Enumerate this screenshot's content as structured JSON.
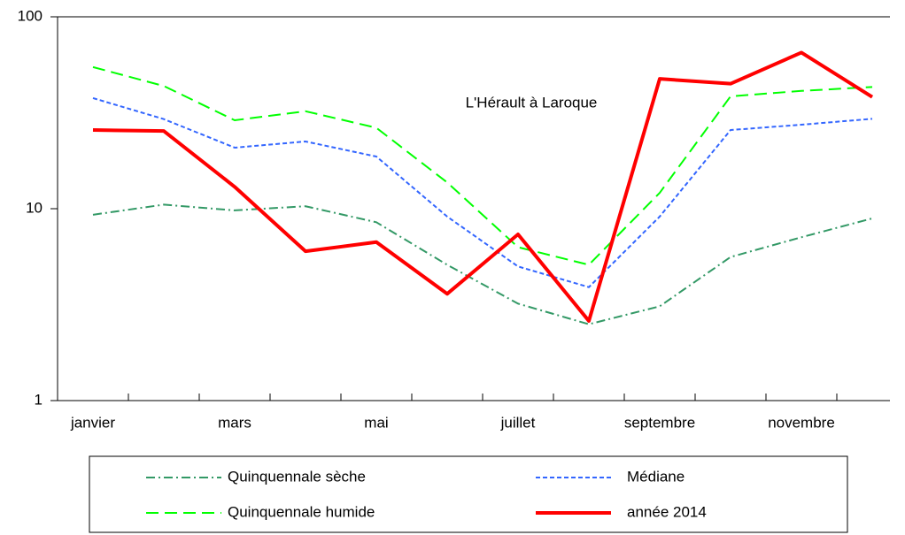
{
  "chart_data": {
    "type": "line",
    "title": "L'Hérault à Laroque",
    "categories": [
      "janvier",
      null,
      "mars",
      null,
      "mai",
      null,
      "juillet",
      null,
      "septembre",
      null,
      "novembre",
      null
    ],
    "series": [
      {
        "name": "Quinquennale sèche",
        "color": "#339966",
        "dash": "dashdot",
        "values": [
          9.3,
          10.5,
          9.8,
          10.3,
          8.5,
          5.1,
          3.2,
          2.5,
          3.1,
          5.6,
          7.1,
          8.9
        ]
      },
      {
        "name": "Médiane",
        "color": "#3366ff",
        "dash": "dash",
        "values": [
          37.7,
          29.3,
          20.8,
          22.4,
          18.7,
          9.1,
          5.0,
          3.9,
          9.1,
          25.7,
          27.4,
          29.4
        ]
      },
      {
        "name": "Quinquennale humide",
        "color": "#00ff00",
        "dash": "longdash",
        "values": [
          54.7,
          43.6,
          28.9,
          32.2,
          26.4,
          13.7,
          6.3,
          5.1,
          12.1,
          38.5,
          41.1,
          43.1
        ]
      },
      {
        "name": "année 2014",
        "color": "#ff0000",
        "dash": "solid",
        "values": [
          25.7,
          25.4,
          13.0,
          6.0,
          6.7,
          3.6,
          7.35,
          2.6,
          47.5,
          44.8,
          65.1,
          38.2
        ]
      }
    ],
    "ylim": [
      1,
      100
    ],
    "yticks": [
      1,
      10,
      100
    ],
    "log_y": true,
    "legend": "bottom"
  }
}
